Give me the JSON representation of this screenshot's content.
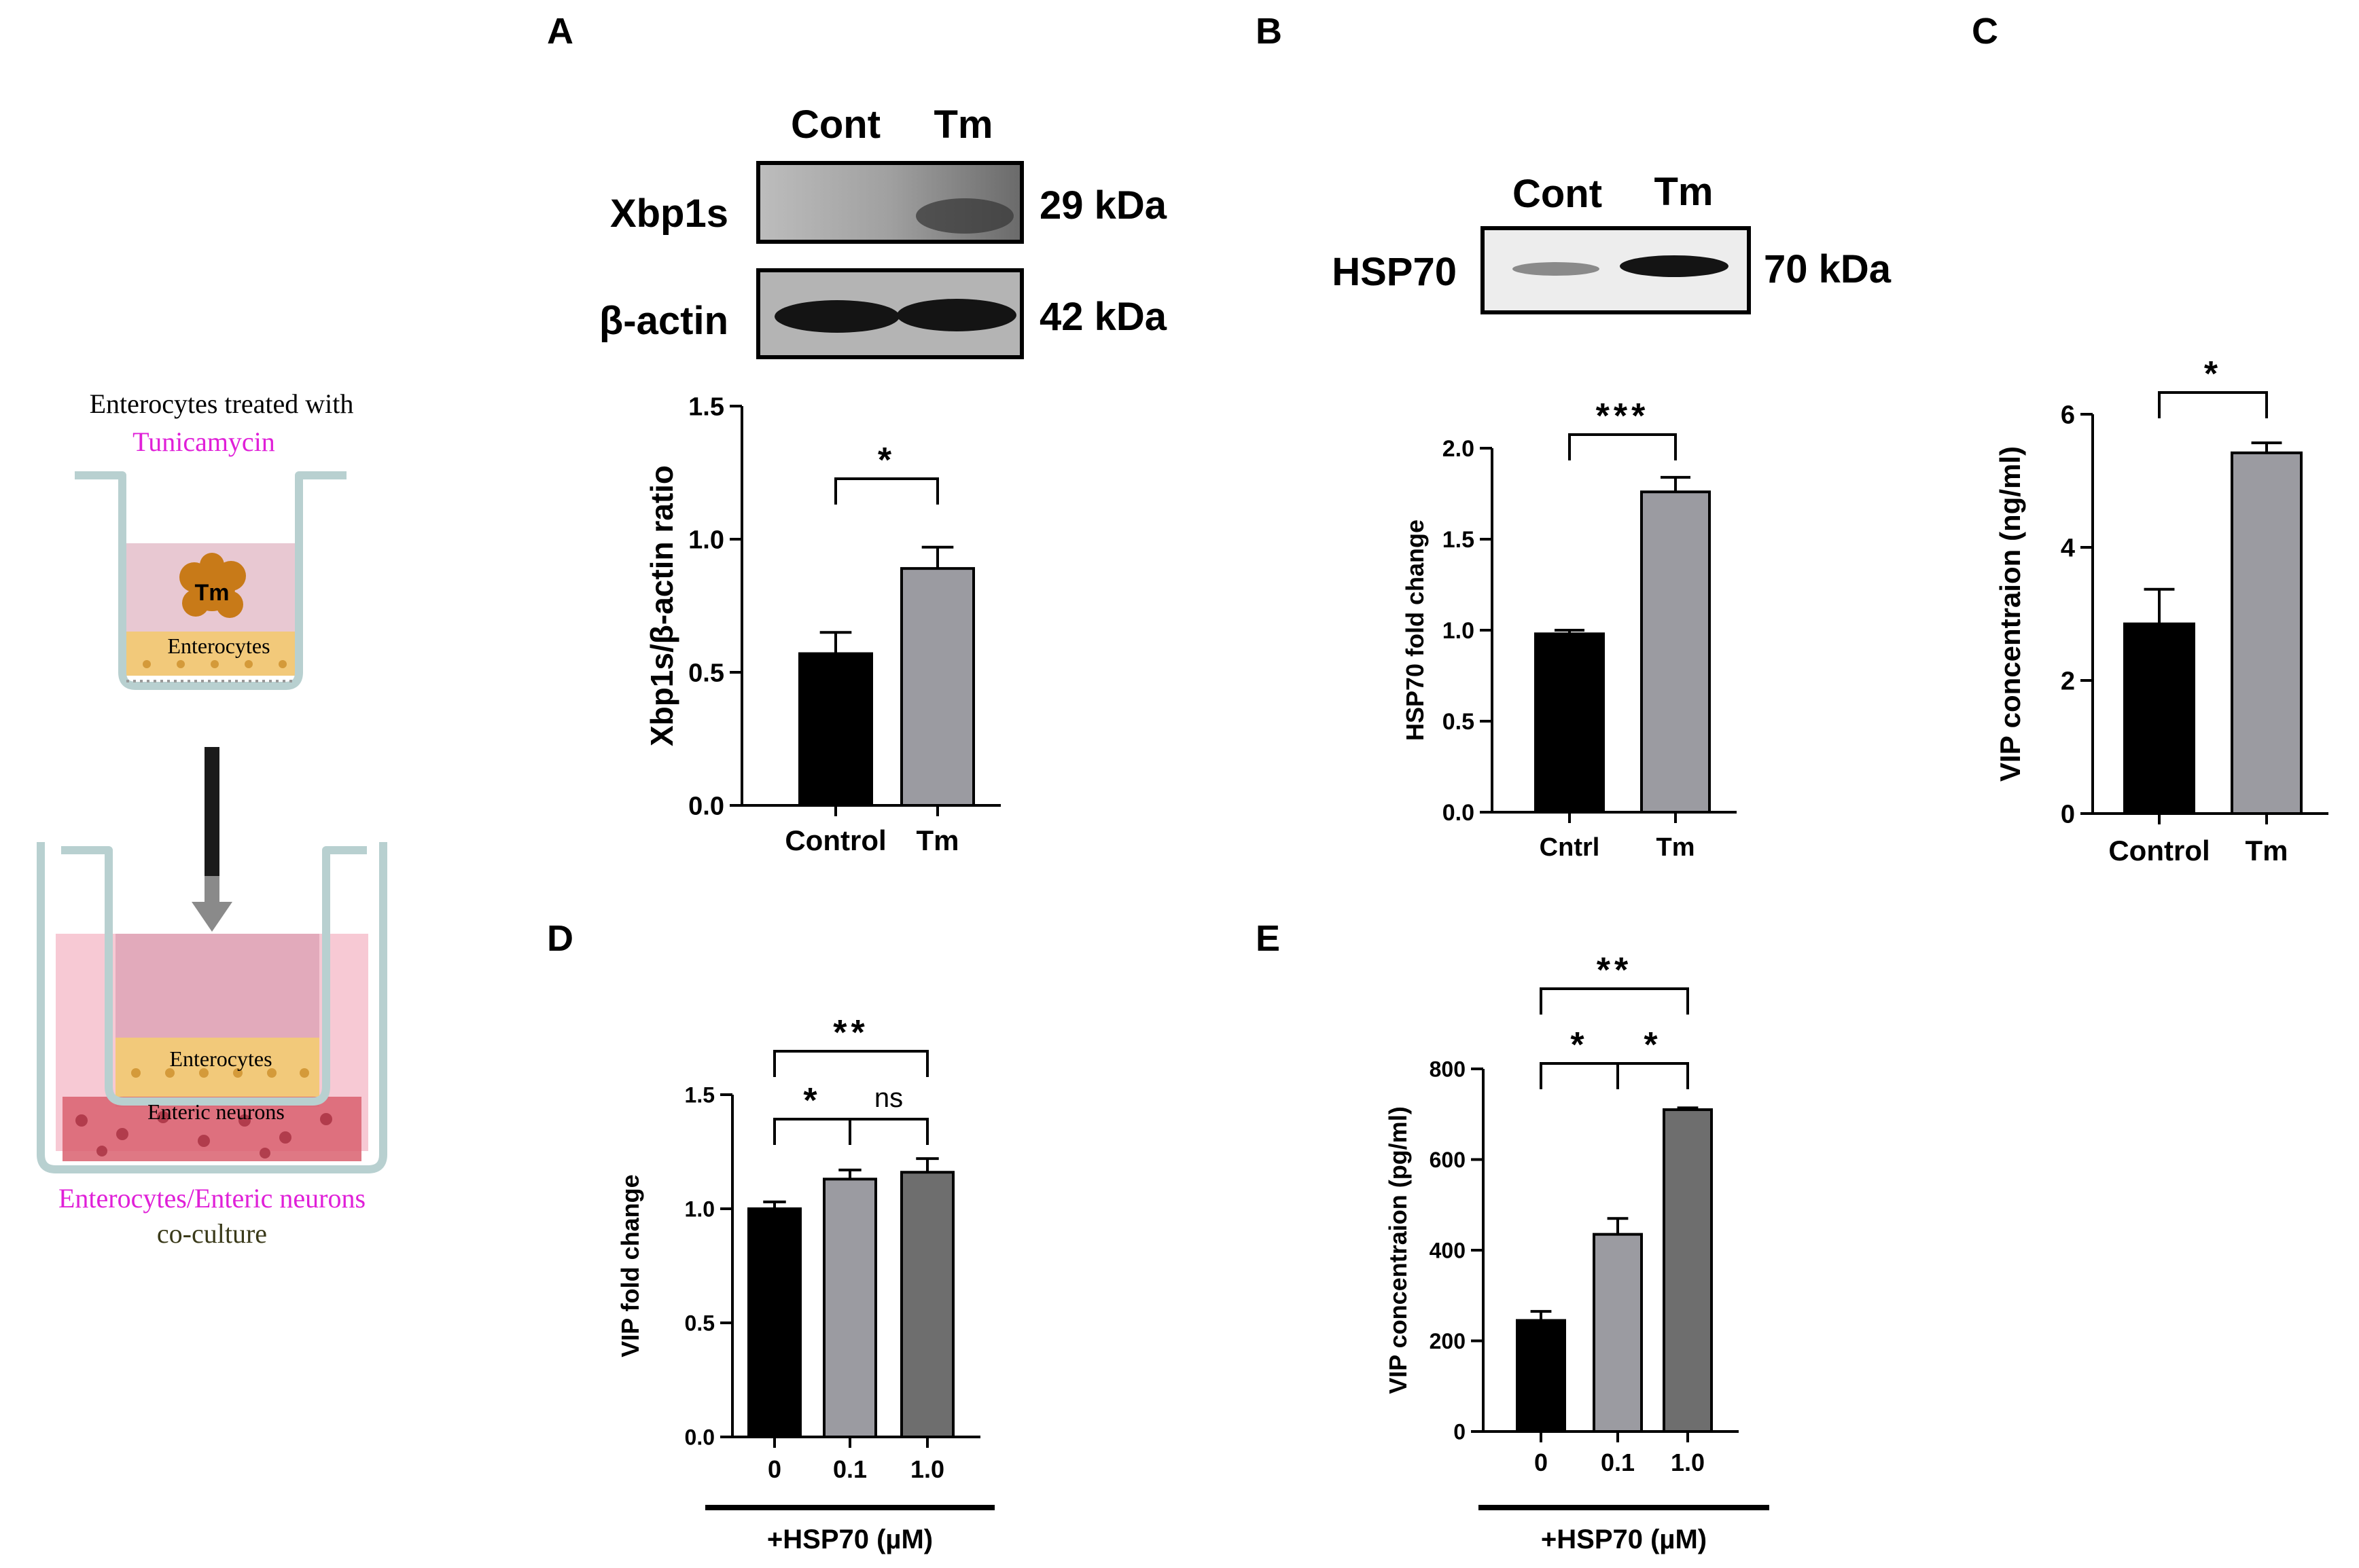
{
  "colors": {
    "black_bar": "#000000",
    "light_gray_bar": "#9b9ba1",
    "dark_gray_bar": "#6e6e6e",
    "magenta_text": "#e020d8",
    "olive_text": "#3a3a1a",
    "band_dark": "#141414"
  },
  "schematic": {
    "top_title": "Enterocytes treated with",
    "top_drug": "Tunicamycin",
    "tm_label": "Tm",
    "enterocytes_label": "Enterocytes",
    "enterocytes_label_2": "Enterocytes",
    "neurons_label": "Enteric neurons",
    "bottom_title": "Enterocytes/Enteric  neurons",
    "bottom_sub": "co-culture",
    "icons": [
      "transwell-insert-icon",
      "arrow-down-icon",
      "coculture-well-icon"
    ]
  },
  "blot_A": {
    "col_labels": [
      "Cont",
      "Tm"
    ],
    "rows": [
      {
        "label": "Xbp1s",
        "size": "29 kDa"
      },
      {
        "label": "β-actin",
        "size": "42 kDa"
      }
    ]
  },
  "blot_B": {
    "col_labels": [
      "Cont",
      "Tm"
    ],
    "rows": [
      {
        "label": "HSP70",
        "size": "70 kDa"
      }
    ]
  },
  "chart_data": [
    {
      "panel": "A",
      "type": "bar",
      "categories": [
        "Control",
        "Tm"
      ],
      "values": [
        0.57,
        0.89
      ],
      "errors": [
        0.08,
        0.08
      ],
      "colors": [
        "#000000",
        "#9b9ba1"
      ],
      "ylabel": "Xbp1s/β-actin ratio",
      "ylim": [
        0,
        1.5
      ],
      "yticks": [
        "0.0",
        "0.5",
        "1.0",
        "1.5"
      ],
      "significance": [
        {
          "pair": [
            0,
            1
          ],
          "label": "*"
        }
      ]
    },
    {
      "panel": "B",
      "type": "bar",
      "categories": [
        "Cntrl",
        "Tm"
      ],
      "values": [
        0.98,
        1.76
      ],
      "errors": [
        0.02,
        0.08
      ],
      "colors": [
        "#000000",
        "#9b9ba1"
      ],
      "ylabel": "HSP70 fold change",
      "ylim": [
        0,
        2.0
      ],
      "yticks": [
        "0.0",
        "0.5",
        "1.0",
        "1.5",
        "2.0"
      ],
      "significance": [
        {
          "pair": [
            0,
            1
          ],
          "label": "***"
        }
      ]
    },
    {
      "panel": "C",
      "type": "bar",
      "categories": [
        "Control",
        "Tm"
      ],
      "values": [
        2.85,
        5.42
      ],
      "errors": [
        0.52,
        0.15
      ],
      "colors": [
        "#000000",
        "#9b9ba1"
      ],
      "ylabel": "VIP concentraion (ng/ml)",
      "ylim": [
        0,
        6
      ],
      "yticks": [
        "0",
        "2",
        "4",
        "6"
      ],
      "significance": [
        {
          "pair": [
            0,
            1
          ],
          "label": "*"
        }
      ]
    },
    {
      "panel": "D",
      "type": "bar",
      "categories": [
        "0",
        "0.1",
        "1.0"
      ],
      "values": [
        1.0,
        1.13,
        1.16
      ],
      "errors": [
        0.03,
        0.04,
        0.06
      ],
      "colors": [
        "#000000",
        "#9b9ba1",
        "#6e6e6e"
      ],
      "ylabel": "VIP fold change",
      "xlabel": "+HSP70 (µM)",
      "ylim": [
        0,
        1.5
      ],
      "yticks": [
        "0.0",
        "0.5",
        "1.0",
        "1.5"
      ],
      "significance": [
        {
          "pair": [
            0,
            1
          ],
          "label": "*"
        },
        {
          "pair": [
            1,
            2
          ],
          "label": "ns"
        },
        {
          "pair": [
            0,
            2
          ],
          "label": "**"
        }
      ]
    },
    {
      "panel": "E",
      "type": "bar",
      "categories": [
        "0",
        "0.1",
        "1.0"
      ],
      "values": [
        245,
        435,
        710
      ],
      "errors": [
        20,
        35,
        4
      ],
      "colors": [
        "#000000",
        "#9b9ba1",
        "#6e6e6e"
      ],
      "ylabel": "VIP concentraion (pg/ml)",
      "xlabel": "+HSP70 (µM)",
      "ylim": [
        0,
        800
      ],
      "yticks": [
        "0",
        "200",
        "400",
        "600",
        "800"
      ],
      "significance": [
        {
          "pair": [
            0,
            1
          ],
          "label": "*"
        },
        {
          "pair": [
            1,
            2
          ],
          "label": "*"
        },
        {
          "pair": [
            0,
            2
          ],
          "label": "**"
        }
      ]
    }
  ]
}
